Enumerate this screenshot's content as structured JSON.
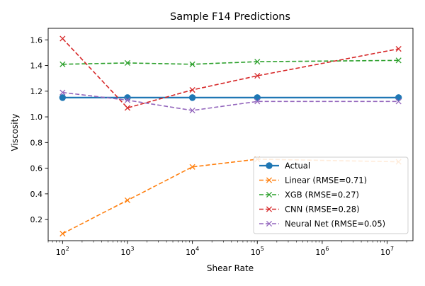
{
  "chart_data": {
    "type": "line",
    "title": "Sample F14 Predictions",
    "xlabel": "Shear Rate",
    "ylabel": "Viscosity",
    "x_scale": "log",
    "xlim": [
      60,
      25000000
    ],
    "ylim": [
      0.035,
      1.69
    ],
    "x_ticks": [
      {
        "value": 100,
        "base": "10",
        "exp": "2"
      },
      {
        "value": 1000,
        "base": "10",
        "exp": "3"
      },
      {
        "value": 10000,
        "base": "10",
        "exp": "4"
      },
      {
        "value": 100000,
        "base": "10",
        "exp": "5"
      },
      {
        "value": 1000000,
        "base": "10",
        "exp": "6"
      },
      {
        "value": 10000000,
        "base": "10",
        "exp": "7"
      }
    ],
    "y_ticks": [
      "0.2",
      "0.4",
      "0.6",
      "0.8",
      "1.0",
      "1.2",
      "1.4",
      "1.6"
    ],
    "grid": false,
    "legend_position": "lower-right",
    "x": [
      100,
      1000,
      10000,
      100000,
      15000000
    ],
    "series": [
      {
        "name": "Actual",
        "values": [
          1.15,
          1.15,
          1.15,
          1.15,
          1.15
        ],
        "color": "#1f77b4",
        "line_style": "solid",
        "marker": "circle"
      },
      {
        "name": "Linear (RMSE=0.71)",
        "values": [
          0.09,
          0.35,
          0.61,
          0.67,
          0.65
        ],
        "color": "#ff7f0e",
        "line_style": "dashed",
        "marker": "x"
      },
      {
        "name": "XGB (RMSE=0.27)",
        "values": [
          1.41,
          1.42,
          1.41,
          1.43,
          1.44
        ],
        "color": "#2ca02c",
        "line_style": "dashed",
        "marker": "x"
      },
      {
        "name": "CNN (RMSE=0.28)",
        "values": [
          1.61,
          1.07,
          1.21,
          1.32,
          1.53
        ],
        "color": "#d62728",
        "line_style": "dashed",
        "marker": "x"
      },
      {
        "name": "Neural Net (RMSE=0.05)",
        "values": [
          1.19,
          1.13,
          1.05,
          1.12,
          1.12
        ],
        "color": "#9467bd",
        "line_style": "dashed",
        "marker": "x"
      }
    ]
  }
}
